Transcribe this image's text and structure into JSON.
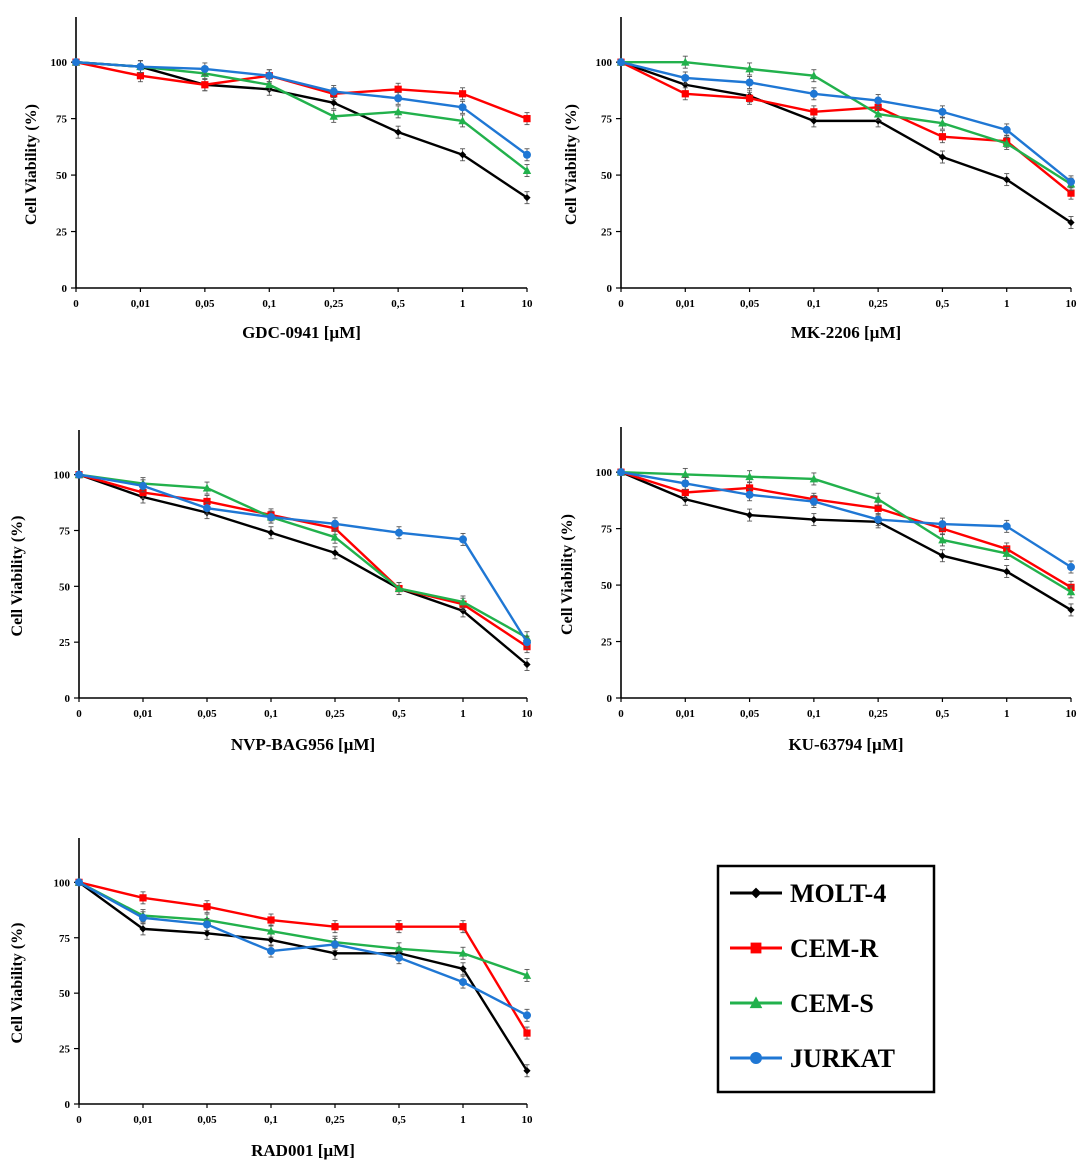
{
  "series_styles": [
    {
      "name": "MOLT-4",
      "color": "#000000",
      "marker": "diamond"
    },
    {
      "name": "CEM-R",
      "color": "#ff0000",
      "marker": "square"
    },
    {
      "name": "CEM-S",
      "color": "#22b14c",
      "marker": "triangle"
    },
    {
      "name": "JURKAT",
      "color": "#1f77d4",
      "marker": "circle"
    }
  ],
  "legend": {
    "placement": "bottom-right",
    "items": [
      "MOLT-4",
      "CEM-R",
      "CEM-S",
      "JURKAT"
    ]
  },
  "chart_data": [
    {
      "type": "line",
      "xlabel": "GDC-0941 [µM]",
      "ylabel": "Cell Viability (%)",
      "categories": [
        "0",
        "0,01",
        "0,05",
        "0,1",
        "0,25",
        "0,5",
        "1",
        "10"
      ],
      "yticks": [
        "0",
        "25",
        "50",
        "75",
        "100"
      ],
      "ylim": [
        0,
        120
      ],
      "grid": false,
      "series": [
        {
          "name": "MOLT-4",
          "values": [
            100,
            98,
            90,
            88,
            82,
            69,
            59,
            40
          ]
        },
        {
          "name": "CEM-R",
          "values": [
            100,
            94,
            90,
            94,
            86,
            88,
            86,
            75
          ]
        },
        {
          "name": "CEM-S",
          "values": [
            100,
            98,
            95,
            90,
            76,
            78,
            74,
            52
          ]
        },
        {
          "name": "JURKAT",
          "values": [
            100,
            98,
            97,
            94,
            87,
            84,
            80,
            59
          ]
        }
      ]
    },
    {
      "type": "line",
      "xlabel": "MK-2206 [µM]",
      "ylabel": "Cell Viability (%)",
      "categories": [
        "0",
        "0,01",
        "0,05",
        "0,1",
        "0,25",
        "0,5",
        "1",
        "10"
      ],
      "yticks": [
        "0",
        "25",
        "50",
        "75",
        "100"
      ],
      "ylim": [
        0,
        120
      ],
      "grid": false,
      "series": [
        {
          "name": "MOLT-4",
          "values": [
            100,
            90,
            85,
            74,
            74,
            58,
            48,
            29
          ]
        },
        {
          "name": "CEM-R",
          "values": [
            100,
            86,
            84,
            78,
            80,
            67,
            65,
            42
          ]
        },
        {
          "name": "CEM-S",
          "values": [
            100,
            100,
            97,
            94,
            77,
            73,
            64,
            46
          ]
        },
        {
          "name": "JURKAT",
          "values": [
            100,
            93,
            91,
            86,
            83,
            78,
            70,
            47
          ]
        }
      ]
    },
    {
      "type": "line",
      "xlabel": "NVP-BAG956 [µM]",
      "ylabel": "Cell Viability (%)",
      "categories": [
        "0",
        "0,01",
        "0,05",
        "0,1",
        "0,25",
        "0,5",
        "1",
        "10"
      ],
      "yticks": [
        "0",
        "25",
        "50",
        "75",
        "100"
      ],
      "ylim": [
        0,
        120
      ],
      "grid": false,
      "series": [
        {
          "name": "MOLT-4",
          "values": [
            100,
            90,
            83,
            74,
            65,
            49,
            39,
            15
          ]
        },
        {
          "name": "CEM-R",
          "values": [
            100,
            92,
            88,
            82,
            76,
            49,
            42,
            23
          ]
        },
        {
          "name": "CEM-S",
          "values": [
            100,
            96,
            94,
            81,
            72,
            49,
            43,
            27
          ]
        },
        {
          "name": "JURKAT",
          "values": [
            100,
            95,
            85,
            81,
            78,
            74,
            71,
            25
          ]
        }
      ]
    },
    {
      "type": "line",
      "xlabel": "KU-63794 [µM]",
      "ylabel": "Cell Viability (%)",
      "categories": [
        "0",
        "0,01",
        "0,05",
        "0,1",
        "0,25",
        "0,5",
        "1",
        "10"
      ],
      "yticks": [
        "0",
        "25",
        "50",
        "75",
        "100"
      ],
      "ylim": [
        0,
        120
      ],
      "grid": false,
      "series": [
        {
          "name": "MOLT-4",
          "values": [
            100,
            88,
            81,
            79,
            78,
            63,
            56,
            39
          ]
        },
        {
          "name": "CEM-R",
          "values": [
            100,
            91,
            93,
            88,
            84,
            75,
            66,
            49
          ]
        },
        {
          "name": "CEM-S",
          "values": [
            100,
            99,
            98,
            97,
            88,
            70,
            64,
            47
          ]
        },
        {
          "name": "JURKAT",
          "values": [
            100,
            95,
            90,
            87,
            79,
            77,
            76,
            58
          ]
        }
      ]
    },
    {
      "type": "line",
      "xlabel": "RAD001 [µM]",
      "ylabel": "Cell Viability (%)",
      "categories": [
        "0",
        "0,01",
        "0,05",
        "0,1",
        "0,25",
        "0,5",
        "1",
        "10"
      ],
      "yticks": [
        "0",
        "25",
        "50",
        "75",
        "100"
      ],
      "ylim": [
        0,
        120
      ],
      "grid": false,
      "series": [
        {
          "name": "MOLT-4",
          "values": [
            100,
            79,
            77,
            74,
            68,
            68,
            61,
            15
          ]
        },
        {
          "name": "CEM-R",
          "values": [
            100,
            93,
            89,
            83,
            80,
            80,
            80,
            32
          ]
        },
        {
          "name": "CEM-S",
          "values": [
            100,
            85,
            83,
            78,
            73,
            70,
            68,
            58
          ]
        },
        {
          "name": "JURKAT",
          "values": [
            100,
            84,
            81,
            69,
            72,
            66,
            55,
            40
          ]
        }
      ]
    }
  ]
}
